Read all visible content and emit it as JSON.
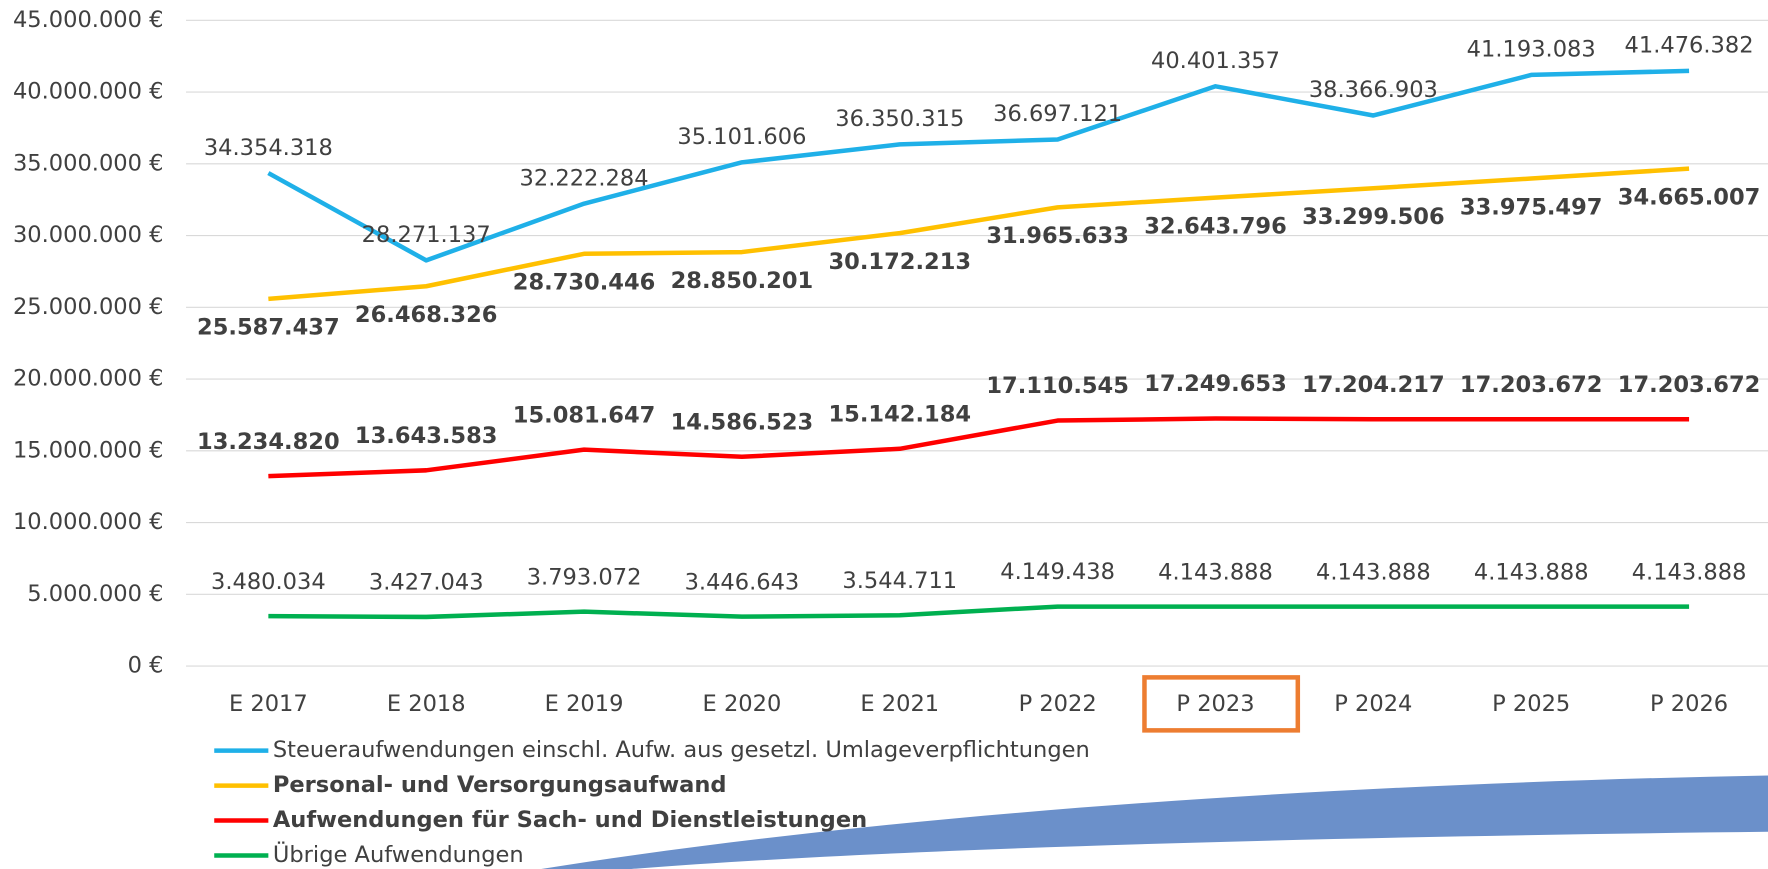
{
  "chart_data": {
    "type": "line",
    "categories": [
      "E 2017",
      "E 2018",
      "E 2019",
      "E 2020",
      "E 2021",
      "P 2022",
      "P 2023",
      "P 2024",
      "P 2025",
      "P 2026"
    ],
    "highlight": 6,
    "highlight_color": "#ed7d31",
    "ylim": [
      0,
      45000000
    ],
    "yticks": [
      {
        "value": 0,
        "label": "0 €"
      },
      {
        "value": 5000000,
        "label": "5.000.000 €"
      },
      {
        "value": 10000000,
        "label": "10.000.000 €"
      },
      {
        "value": 15000000,
        "label": "15.000.000 €"
      },
      {
        "value": 20000000,
        "label": "20.000.000 €"
      },
      {
        "value": 25000000,
        "label": "25.000.000 €"
      },
      {
        "value": 30000000,
        "label": "30.000.000 €"
      },
      {
        "value": 35000000,
        "label": "35.000.000 €"
      },
      {
        "value": 40000000,
        "label": "40.000.000 €"
      },
      {
        "value": 45000000,
        "label": "45.000.000 €"
      }
    ],
    "grid": true,
    "legend": "bottom-left",
    "series": [
      {
        "name": "Steueraufwendungen einschl. Aufw. aus gesetzl. Umlageverpflichtungen",
        "color": "#1fb0e8",
        "bold": false,
        "values": [
          34354318,
          28271137,
          32222284,
          35101606,
          36350315,
          36697121,
          40401357,
          38366903,
          41193083,
          41476382
        ],
        "value_labels": [
          "34.354.318",
          "28.271.137",
          "32.222.284",
          "35.101.606",
          "36.350.315",
          "36.697.121",
          "40.401.357",
          "38.366.903",
          "41.193.083",
          "41.476.382"
        ]
      },
      {
        "name": "Personal- und Versorgungsaufwand",
        "color": "#ffc000",
        "bold": true,
        "values": [
          25587437,
          26468326,
          28730446,
          28850201,
          30172213,
          31965633,
          32643796,
          33299506,
          33975497,
          34665007
        ],
        "value_labels": [
          "25.587.437",
          "26.468.326",
          "28.730.446",
          "28.850.201",
          "30.172.213",
          "31.965.633",
          "32.643.796",
          "33.299.506",
          "33.975.497",
          "34.665.007"
        ]
      },
      {
        "name": "Aufwendungen für Sach- und Dienstleistungen",
        "color": "#ff0000",
        "bold": true,
        "values": [
          13234820,
          13643583,
          15081647,
          14586523,
          15142184,
          17110545,
          17249653,
          17204217,
          17203672,
          17203672
        ],
        "value_labels": [
          "13.234.820",
          "13.643.583",
          "15.081.647",
          "14.586.523",
          "15.142.184",
          "17.110.545",
          "17.249.653",
          "17.204.217",
          "17.203.672",
          "17.203.672"
        ]
      },
      {
        "name": "Übrige Aufwendungen",
        "color": "#00b050",
        "bold": false,
        "values": [
          3480034,
          3427043,
          3793072,
          3446643,
          3544711,
          4149438,
          4143888,
          4143888,
          4143888,
          4143888
        ],
        "value_labels": [
          "3.480.034",
          "3.427.043",
          "3.793.072",
          "3.446.643",
          "3.544.711",
          "4.149.438",
          "4.143.888",
          "4.143.888",
          "4.143.888",
          "4.143.888"
        ]
      }
    ]
  }
}
